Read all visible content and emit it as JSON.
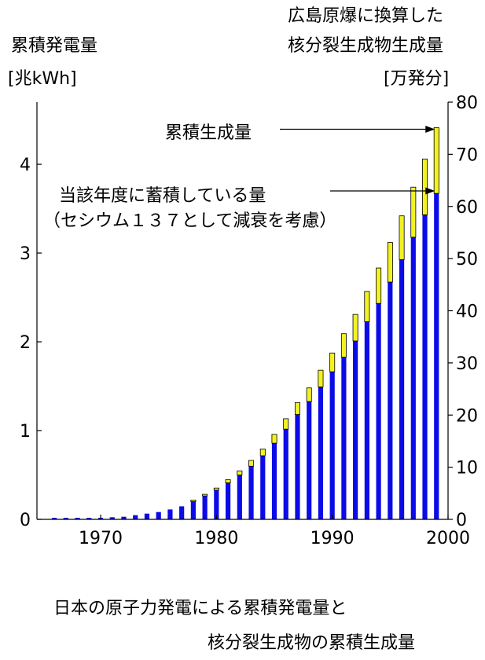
{
  "header": {
    "left_title": "累積発電量",
    "left_unit": "[兆kWh]",
    "right_title_line1": "広島原爆に換算した",
    "right_title_line2": "核分裂生成物生成量",
    "right_unit": "[万発分]"
  },
  "caption": {
    "line1": "日本の原子力発電による累積発電量と",
    "line2": "核分裂生成物の累積生成量"
  },
  "chart_data": {
    "type": "bar",
    "stacked": true,
    "x_axis": {
      "ticks": [
        1970,
        1980,
        1990,
        2000
      ],
      "xlim": [
        1964.5,
        2000
      ]
    },
    "y_left": {
      "ticks": [
        0,
        1,
        2,
        3,
        4
      ],
      "ylim": [
        0,
        4.7
      ]
    },
    "y_right": {
      "ticks": [
        0,
        10,
        20,
        30,
        40,
        50,
        60,
        70,
        80
      ],
      "ylim": [
        0,
        80
      ]
    },
    "annotations": [
      {
        "id": "cumulative",
        "text": "累積生成量"
      },
      {
        "id": "stored",
        "text": "当該年度に蓄積している量"
      },
      {
        "id": "stored_note",
        "text": "（セシウム１３７として減衰を考慮）"
      }
    ],
    "colors": {
      "stored": "#0b0be8",
      "decayed": "#f2f223"
    },
    "years": [
      1966,
      1967,
      1968,
      1969,
      1970,
      1971,
      1972,
      1973,
      1974,
      1975,
      1976,
      1977,
      1978,
      1979,
      1980,
      1981,
      1982,
      1983,
      1984,
      1985,
      1986,
      1987,
      1988,
      1989,
      1990,
      1991,
      1992,
      1993,
      1994,
      1995,
      1996,
      1997,
      1998,
      1999
    ],
    "series": [
      {
        "id": "stored",
        "values": [
          0.3,
          0.3,
          0.3,
          0.3,
          0.3,
          0.4,
          0.5,
          0.8,
          1.1,
          1.4,
          1.9,
          2.5,
          3.4,
          4.5,
          5.6,
          7.0,
          8.5,
          10.2,
          12.2,
          14.6,
          17.3,
          20.1,
          22.6,
          25.4,
          28.3,
          31.1,
          34.2,
          37.9,
          41.4,
          45.5,
          49.8,
          54.1,
          58.4,
          62.5
        ]
      },
      {
        "id": "decayed",
        "values": [
          0,
          0,
          0,
          0,
          0,
          0,
          0,
          0,
          0,
          0,
          0,
          0,
          0.3,
          0.3,
          0.4,
          0.6,
          0.8,
          1.1,
          1.3,
          1.7,
          2.0,
          2.3,
          2.6,
          3.2,
          3.6,
          4.5,
          5.1,
          5.8,
          6.8,
          7.6,
          8.4,
          9.6,
          10.7,
          12.6
        ]
      }
    ]
  }
}
